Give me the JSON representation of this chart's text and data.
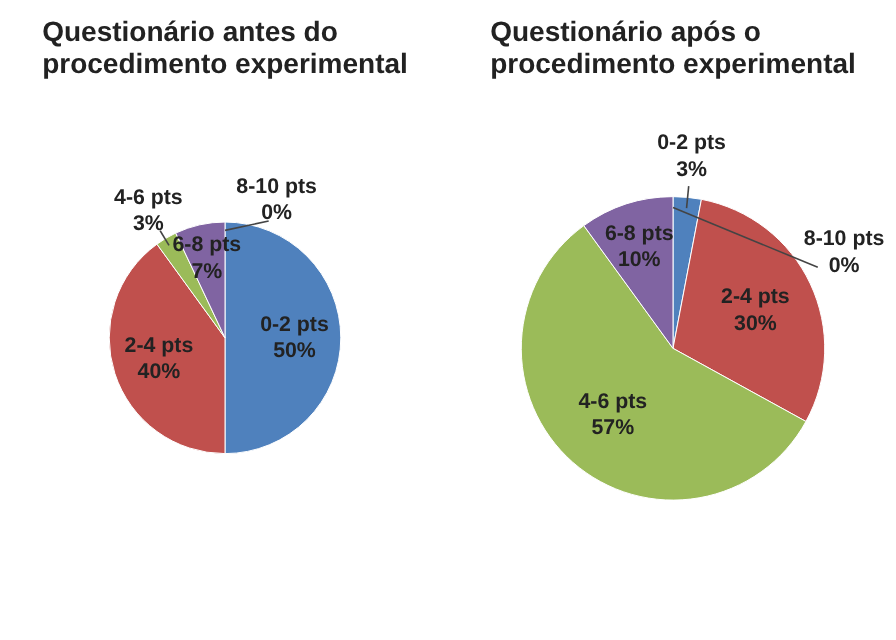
{
  "chart_data": [
    {
      "type": "pie",
      "title": "Questionário antes do procedimento experimental",
      "categories": [
        "0-2 pts",
        "2-4 pts",
        "4-6 pts",
        "6-8 pts",
        "8-10 pts"
      ],
      "values": [
        50,
        40,
        3,
        7,
        0
      ],
      "value_labels": [
        "50%",
        "40%",
        "3%",
        "7%",
        "0%"
      ],
      "colors": [
        "#4f81bd",
        "#c0504d",
        "#9bbb59",
        "#8064a2",
        "#4bacc6"
      ],
      "legend": false
    },
    {
      "type": "pie",
      "title": "Questionário após o procedimento experimental",
      "categories": [
        "0-2 pts",
        "2-4 pts",
        "4-6 pts",
        "6-8 pts",
        "8-10 pts"
      ],
      "values": [
        3,
        30,
        57,
        10,
        0
      ],
      "value_labels": [
        "3%",
        "30%",
        "57%",
        "10%",
        "0%"
      ],
      "colors": [
        "#4f81bd",
        "#c0504d",
        "#9bbb59",
        "#8064a2",
        "#4bacc6"
      ],
      "legend": false
    }
  ]
}
